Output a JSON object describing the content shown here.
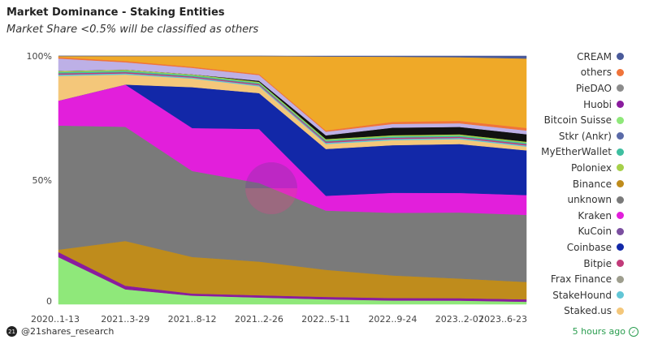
{
  "title": "Market Dominance - Staking Entities",
  "subtitle": "Market Share <0.5% will be classified as others",
  "author": "@21shares_research",
  "author_avatar_text": "21",
  "timestamp": "5 hours ago",
  "chart_data": {
    "type": "area",
    "stacked": true,
    "percent": true,
    "x": [
      "2020-11-13",
      "2021-03-29",
      "2021-08-12",
      "2021-12-26",
      "2022-05-11",
      "2022-09-24",
      "2023-02-07",
      "2023-06-23"
    ],
    "tick_labels": [
      "2020..1-13",
      "2021..3-29",
      "2021..8-12",
      "2021..2-26",
      "2022..5-11",
      "2022..9-24",
      "2023..2-07",
      "2023..6-23"
    ],
    "y_ticks": [
      "0",
      "50%",
      "100%"
    ],
    "ylim": [
      0,
      100
    ],
    "series": [
      {
        "name": "Staked.us",
        "color": "#f4c77a",
        "values": [
          0,
          0,
          0,
          0,
          0,
          0,
          0,
          0
        ]
      },
      {
        "name": "StakeHound",
        "color": "#62c6d6",
        "values": [
          0,
          0,
          0,
          0,
          0,
          0,
          0,
          0
        ]
      },
      {
        "name": "Frax Finance",
        "color": "#9e9e8e",
        "values": [
          0,
          0,
          0,
          0,
          0,
          0,
          0,
          0
        ]
      },
      {
        "name": "Bitpie",
        "color": "#c23b7a",
        "values": [
          0,
          0,
          0,
          0,
          0,
          0,
          0,
          0
        ]
      },
      {
        "name": "Coinbase",
        "color": "#1228a8",
        "values": [
          0,
          0,
          0,
          0,
          0,
          0,
          0,
          0
        ]
      },
      {
        "name": "KuCoin",
        "color": "#7b4fa0",
        "values": [
          0,
          0,
          0,
          0,
          0,
          0,
          0,
          0
        ]
      },
      {
        "name": "Kraken",
        "color": "#e21fdb",
        "values": [
          0,
          0,
          0,
          0,
          0,
          0,
          0,
          0
        ]
      },
      {
        "name": "unknown",
        "color": "#7a7a7a",
        "values": [
          0,
          0,
          0,
          0,
          0,
          0,
          0,
          0
        ]
      },
      {
        "name": "Binance",
        "color": "#bf8c1c",
        "values": [
          0,
          0,
          0,
          0,
          0,
          0,
          0,
          0
        ]
      },
      {
        "name": "Poloniex",
        "color": "#a6d04a",
        "values": [
          0,
          0,
          0,
          0,
          0,
          0,
          0,
          0
        ]
      },
      {
        "name": "MyEtherWallet",
        "color": "#3fbfa0",
        "values": [
          0,
          0,
          0,
          0,
          0,
          0,
          0,
          0
        ]
      },
      {
        "name": "Stkr (Ankr)",
        "color": "#5a6aa8",
        "values": [
          0,
          0,
          0,
          0,
          0,
          0,
          0,
          0
        ]
      },
      {
        "name": "Bitcoin Suisse",
        "color": "#8fe87a",
        "values": [
          0,
          0,
          0,
          0,
          0,
          0,
          0,
          0
        ]
      },
      {
        "name": "Huobi",
        "color": "#8a1c9e",
        "values": [
          0,
          0,
          0,
          0,
          0,
          0,
          0,
          0
        ]
      },
      {
        "name": "PieDAO",
        "color": "#8c8c8c",
        "values": [
          0,
          0,
          0,
          0,
          0,
          0,
          0,
          0
        ]
      },
      {
        "name": "others",
        "color": "#f0743a",
        "values": [
          0,
          0,
          0,
          0,
          0,
          0,
          0,
          0
        ]
      },
      {
        "name": "CREAM",
        "color": "#4a5a9a",
        "values": [
          0,
          0,
          0,
          0,
          0,
          0,
          0,
          0
        ]
      }
    ],
    "bands": [
      {
        "color": "#8fe87a",
        "values": [
          19,
          6,
          4,
          3,
          2,
          1.5,
          1.5,
          1
        ]
      },
      {
        "color": "#8a1c9e",
        "values": [
          2,
          1.5,
          1,
          1,
          1,
          1,
          1,
          1
        ]
      },
      {
        "color": "#bf8c1c",
        "values": [
          1,
          18,
          17,
          15,
          11,
          9,
          8,
          7
        ]
      },
      {
        "color": "#7a7a7a",
        "values": [
          50,
          46,
          40,
          35,
          24,
          25,
          27,
          27
        ]
      },
      {
        "color": "#e21fdb",
        "values": [
          10,
          17,
          20,
          24,
          6,
          8,
          8,
          8
        ]
      },
      {
        "color": "#1228a8",
        "values": [
          0,
          0,
          19,
          16,
          19,
          19,
          20,
          18
        ]
      },
      {
        "color": "#f4c77a",
        "values": [
          10,
          4,
          4,
          3,
          2,
          2,
          2,
          1.5
        ]
      },
      {
        "color": "#62c6d6",
        "values": [
          0.5,
          0.5,
          0.5,
          0.5,
          0.5,
          0.5,
          0.5,
          0.5
        ]
      },
      {
        "color": "#c23b7a",
        "values": [
          0.5,
          0.5,
          0.5,
          0.5,
          0.5,
          0.5,
          0.5,
          0.5
        ]
      },
      {
        "color": "#3fbfa0",
        "values": [
          0.5,
          0.5,
          0.5,
          0.5,
          0.5,
          0.5,
          0.5,
          0.5
        ]
      },
      {
        "color": "#a6d04a",
        "values": [
          0.5,
          0.5,
          0.5,
          0.5,
          0.5,
          0.5,
          0.5,
          0.5
        ]
      },
      {
        "color": "#111111",
        "values": [
          0,
          0,
          0,
          0.5,
          1.5,
          3,
          3,
          3
        ]
      },
      {
        "color": "#bdb0e6",
        "values": [
          5,
          3,
          3,
          2.5,
          1.5,
          1.5,
          1.5,
          1.5
        ]
      },
      {
        "color": "#f0743a",
        "values": [
          0.5,
          0.5,
          0.5,
          0.5,
          0.5,
          0.8,
          1,
          1
        ]
      },
      {
        "color": "#efa928",
        "values": [
          0.5,
          2,
          5,
          8,
          30,
          26,
          26,
          28
        ]
      },
      {
        "color": "#4a5a9a",
        "values": [
          0,
          0,
          0,
          0,
          0.2,
          0.3,
          0.5,
          1
        ]
      }
    ]
  }
}
